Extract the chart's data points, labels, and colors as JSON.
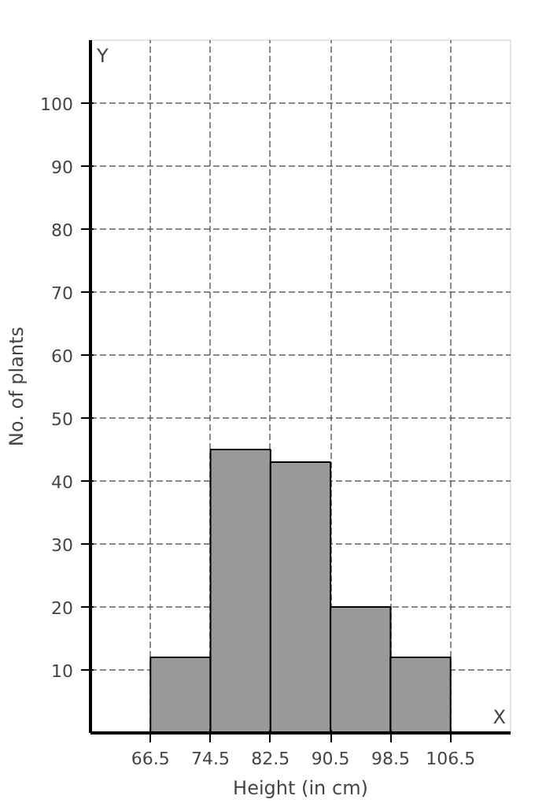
{
  "chart_data": {
    "type": "histogram",
    "xlabel": "Height (in cm)",
    "ylabel": "No. of plants",
    "bins": [
      66.5,
      74.5,
      82.5,
      90.5,
      98.5,
      106.5
    ],
    "values": [
      12,
      45,
      43,
      20,
      12
    ],
    "color": "#999999",
    "xlim": [
      58.5,
      114.5
    ],
    "ylim": [
      0,
      110
    ],
    "xticks": [
      66.5,
      74.5,
      82.5,
      90.5,
      98.5,
      106.5
    ],
    "yticks": [
      10,
      20,
      30,
      40,
      50,
      60,
      70,
      80,
      90,
      100
    ],
    "grid": true,
    "annotations": [
      "X",
      "Y"
    ]
  }
}
